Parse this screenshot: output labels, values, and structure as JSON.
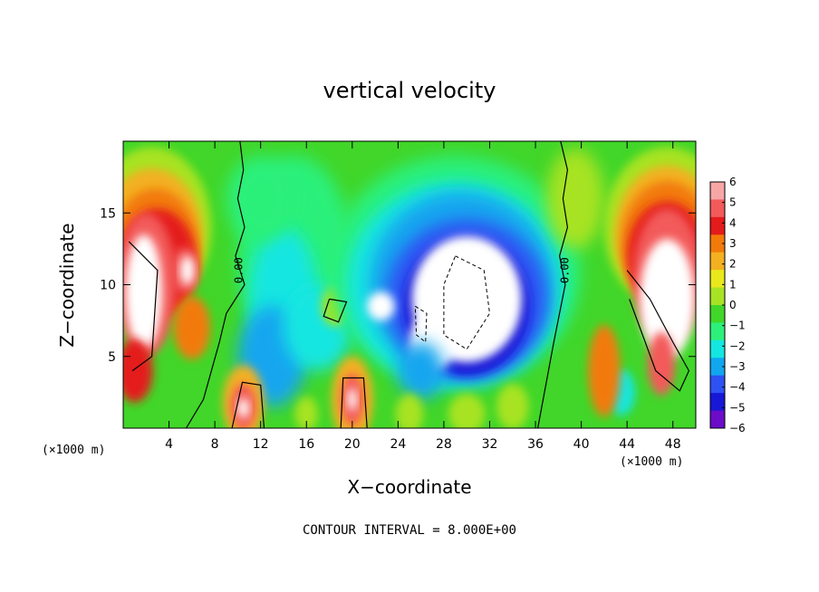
{
  "chart_data": {
    "type": "heatmap",
    "title": "vertical velocity",
    "xlabel": "X−coordinate",
    "ylabel": "Z−coordinate",
    "x_unit_left": "(×1000 m)",
    "x_unit_right": "(×1000 m)",
    "xlim": [
      0,
      50
    ],
    "ylim": [
      0,
      20
    ],
    "x_ticks": [
      4,
      8,
      12,
      16,
      20,
      24,
      28,
      32,
      36,
      40,
      44,
      48
    ],
    "y_ticks": [
      5,
      10,
      15
    ],
    "colorbar": {
      "labels": [
        "6",
        "5",
        "4",
        "3",
        "2",
        "1",
        "0",
        "−1",
        "−2",
        "−3",
        "−4",
        "−5",
        "−6"
      ],
      "range": [
        -6,
        6
      ],
      "colors": [
        "#f7a6a6",
        "#f35a5a",
        "#e41b1b",
        "#f27a0a",
        "#f3b020",
        "#e8e81c",
        "#a7e324",
        "#41d629",
        "#2cf07a",
        "#14e6e1",
        "#12a6ef",
        "#2e51f3",
        "#1717d6",
        "#6a0cc8"
      ]
    },
    "contour_labels": [
      "0.00",
      "0.00"
    ],
    "annotation": "CONTOUR INTERVAL = 8.000E+00",
    "features": [
      {
        "kind": "updraft",
        "x": 4,
        "z": 10,
        "value": 6
      },
      {
        "kind": "updraft",
        "x": 10.5,
        "z": 1.5,
        "value": 6
      },
      {
        "kind": "updraft",
        "x": 20,
        "z": 2,
        "value": 6
      },
      {
        "kind": "updraft",
        "x": 46,
        "z": 9,
        "value": 6
      },
      {
        "kind": "downdraft",
        "x": 29,
        "z": 9,
        "value": -6
      },
      {
        "kind": "zero-contour",
        "x": 10,
        "z": 11
      },
      {
        "kind": "zero-contour",
        "x": 38.5,
        "z": 11
      }
    ]
  }
}
